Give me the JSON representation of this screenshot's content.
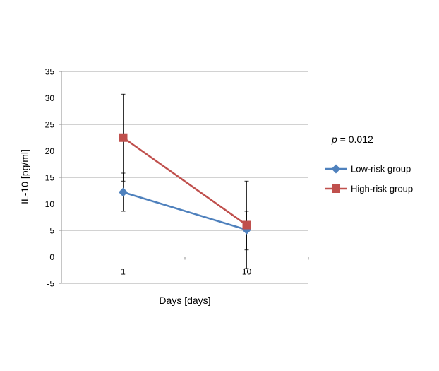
{
  "chart_data": {
    "type": "line",
    "title": "",
    "xlabel": "Days [days]",
    "ylabel": "IL-10 [pg/ml]",
    "ylim": [
      -5,
      35
    ],
    "y_ticks": [
      "-5",
      "0",
      "5",
      "10",
      "15",
      "20",
      "25",
      "30",
      "35"
    ],
    "categories": [
      "1",
      "10"
    ],
    "grid": true,
    "legend_position": "right",
    "annotation": {
      "p_label": "p",
      "p_rest": " = 0.012"
    },
    "series": [
      {
        "name": "Low-risk group",
        "color": "#4f81bd",
        "marker": "diamond",
        "values": [
          12.2,
          5.1
        ],
        "error_low": [
          8.6,
          1.3
        ],
        "error_high": [
          15.8,
          8.6
        ]
      },
      {
        "name": "High-risk group",
        "color": "#c0504d",
        "marker": "square",
        "values": [
          22.5,
          6.0
        ],
        "error_low": [
          14.3,
          -2.2
        ],
        "error_high": [
          30.7,
          14.3
        ]
      }
    ]
  }
}
